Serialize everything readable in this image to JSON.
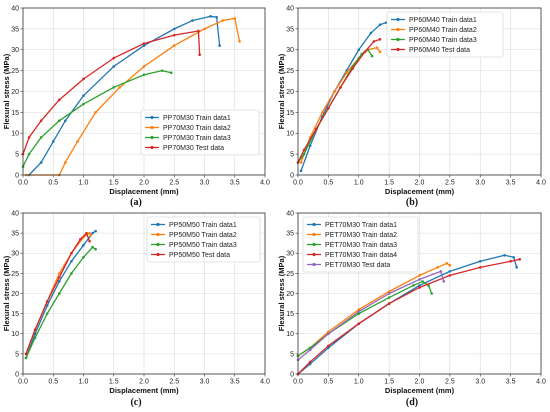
{
  "chart_data": [
    {
      "type": "line",
      "panel_label": "(a)",
      "xlabel": "Displacement (mm)",
      "ylabel": "Flexural stress (MPa)",
      "xlim": [
        0.0,
        4.0
      ],
      "ylim": [
        0,
        40
      ],
      "xticks": [
        "0.0",
        "0.5",
        "1.0",
        "1.5",
        "2.0",
        "2.5",
        "3.0",
        "3.5",
        "4.0"
      ],
      "yticks": [
        "0",
        "5",
        "10",
        "15",
        "20",
        "25",
        "30",
        "35",
        "40"
      ],
      "grid": true,
      "legend_position": "lower-right",
      "series": [
        {
          "name": "PP70M30 Train data1",
          "color": "#1f77b4",
          "points": [
            [
              0.1,
              0
            ],
            [
              0.3,
              3
            ],
            [
              0.5,
              8
            ],
            [
              0.7,
              13
            ],
            [
              1.0,
              19
            ],
            [
              1.5,
              26
            ],
            [
              2.0,
              31
            ],
            [
              2.5,
              35
            ],
            [
              2.8,
              37
            ],
            [
              3.1,
              38
            ],
            [
              3.2,
              37.8
            ],
            [
              3.25,
              31
            ]
          ]
        },
        {
          "name": "PP70M30 Train data2",
          "color": "#ff7f0e",
          "points": [
            [
              0.05,
              0
            ],
            [
              0.6,
              0
            ],
            [
              0.7,
              3
            ],
            [
              0.9,
              8
            ],
            [
              1.2,
              15
            ],
            [
              1.6,
              21
            ],
            [
              2.0,
              26
            ],
            [
              2.5,
              31
            ],
            [
              3.0,
              35
            ],
            [
              3.3,
              37
            ],
            [
              3.5,
              37.5
            ],
            [
              3.58,
              32
            ]
          ]
        },
        {
          "name": "PP70M30 Train data3",
          "color": "#2ca02c",
          "points": [
            [
              0.0,
              2
            ],
            [
              0.1,
              5
            ],
            [
              0.3,
              9
            ],
            [
              0.6,
              13
            ],
            [
              1.0,
              17
            ],
            [
              1.5,
              21
            ],
            [
              2.0,
              24
            ],
            [
              2.3,
              25
            ],
            [
              2.45,
              24.5
            ]
          ]
        },
        {
          "name": "PP70M30 Test data",
          "color": "#d62728",
          "points": [
            [
              0.0,
              5
            ],
            [
              0.1,
              9
            ],
            [
              0.3,
              13
            ],
            [
              0.6,
              18
            ],
            [
              1.0,
              23
            ],
            [
              1.5,
              28
            ],
            [
              2.0,
              31.5
            ],
            [
              2.5,
              33.5
            ],
            [
              2.9,
              34.5
            ],
            [
              2.92,
              28.8
            ]
          ]
        }
      ]
    },
    {
      "type": "line",
      "panel_label": "(b)",
      "xlabel": "Displacement (mm)",
      "ylabel": "Flexural stress (MPa)",
      "xlim": [
        0.0,
        4.0
      ],
      "ylim": [
        0,
        40
      ],
      "xticks": [
        "0.0",
        "0.5",
        "1.0",
        "1.5",
        "2.0",
        "2.5",
        "3.0",
        "3.5",
        "4.0"
      ],
      "yticks": [
        "0",
        "5",
        "10",
        "15",
        "20",
        "25",
        "30",
        "35",
        "40"
      ],
      "grid": true,
      "legend_position": "top-right",
      "series": [
        {
          "name": "PP60M40 Train data1",
          "color": "#1f77b4",
          "points": [
            [
              0.05,
              1
            ],
            [
              0.2,
              7
            ],
            [
              0.4,
              14
            ],
            [
              0.6,
              20
            ],
            [
              0.8,
              25
            ],
            [
              1.0,
              30
            ],
            [
              1.2,
              34
            ],
            [
              1.35,
              36
            ],
            [
              1.45,
              36.5
            ]
          ]
        },
        {
          "name": "PP60M40 Train data2",
          "color": "#ff7f0e",
          "points": [
            [
              0.05,
              3
            ],
            [
              0.2,
              9
            ],
            [
              0.4,
              15
            ],
            [
              0.6,
              20
            ],
            [
              0.8,
              24.5
            ],
            [
              1.0,
              28
            ],
            [
              1.15,
              30
            ],
            [
              1.3,
              30.5
            ],
            [
              1.35,
              29.5
            ]
          ]
        },
        {
          "name": "PP60M40 Train data3",
          "color": "#2ca02c",
          "points": [
            [
              0.0,
              3
            ],
            [
              0.1,
              5
            ],
            [
              0.3,
              11
            ],
            [
              0.5,
              16
            ],
            [
              0.7,
              21
            ],
            [
              0.9,
              26
            ],
            [
              1.05,
              29
            ],
            [
              1.15,
              30
            ],
            [
              1.22,
              28.5
            ]
          ]
        },
        {
          "name": "PP60M40 Test data",
          "color": "#d62728",
          "points": [
            [
              0.0,
              3
            ],
            [
              0.1,
              6
            ],
            [
              0.3,
              11
            ],
            [
              0.5,
              16
            ],
            [
              0.7,
              21
            ],
            [
              0.9,
              25.5
            ],
            [
              1.1,
              29.5
            ],
            [
              1.25,
              32
            ],
            [
              1.35,
              32.5
            ]
          ]
        }
      ]
    },
    {
      "type": "line",
      "panel_label": "(c)",
      "xlabel": "Displacement (mm)",
      "ylabel": "Flexural stress (MPa)",
      "xlim": [
        0.0,
        4.0
      ],
      "ylim": [
        0,
        40
      ],
      "xticks": [
        "0.0",
        "0.5",
        "1.0",
        "1.5",
        "2.0",
        "2.5",
        "3.0",
        "3.5",
        "4.0"
      ],
      "yticks": [
        "0",
        "5",
        "10",
        "15",
        "20",
        "25",
        "30",
        "35",
        "40"
      ],
      "grid": true,
      "legend_position": "top-right",
      "series": [
        {
          "name": "PP50M50 Train data1",
          "color": "#1f77b4",
          "points": [
            [
              0.05,
              4
            ],
            [
              0.2,
              10
            ],
            [
              0.4,
              17
            ],
            [
              0.6,
              23
            ],
            [
              0.8,
              28
            ],
            [
              1.0,
              32
            ],
            [
              1.15,
              35
            ],
            [
              1.2,
              35.5
            ]
          ]
        },
        {
          "name": "PP50M50 Train data2",
          "color": "#ff7f0e",
          "points": [
            [
              0.05,
              5
            ],
            [
              0.2,
              11
            ],
            [
              0.4,
              18
            ],
            [
              0.6,
              25
            ],
            [
              0.8,
              30
            ],
            [
              1.0,
              34
            ],
            [
              1.1,
              35
            ],
            [
              1.12,
              34.5
            ]
          ]
        },
        {
          "name": "PP50M50 Train data3",
          "color": "#2ca02c",
          "points": [
            [
              0.05,
              4
            ],
            [
              0.2,
              9
            ],
            [
              0.4,
              15
            ],
            [
              0.6,
              20
            ],
            [
              0.8,
              25
            ],
            [
              1.0,
              29
            ],
            [
              1.15,
              31.5
            ],
            [
              1.2,
              31
            ]
          ]
        },
        {
          "name": "PP50M50 Test data",
          "color": "#d62728",
          "points": [
            [
              0.05,
              5
            ],
            [
              0.2,
              11
            ],
            [
              0.4,
              18
            ],
            [
              0.6,
              24
            ],
            [
              0.8,
              30
            ],
            [
              0.95,
              33.5
            ],
            [
              1.05,
              35
            ],
            [
              1.1,
              33
            ]
          ]
        }
      ]
    },
    {
      "type": "line",
      "panel_label": "(d)",
      "xlabel": "Displacement (mm)",
      "ylabel": "Flexural stress (MPa)",
      "xlim": [
        0.0,
        4.0
      ],
      "ylim": [
        0,
        40
      ],
      "xticks": [
        "0.0",
        "0.5",
        "1.0",
        "1.5",
        "2.0",
        "2.5",
        "3.0",
        "3.5",
        "4.0"
      ],
      "yticks": [
        "0",
        "5",
        "10",
        "15",
        "20",
        "25",
        "30",
        "35",
        "40"
      ],
      "grid": true,
      "legend_position": "top-left",
      "series": [
        {
          "name": "PET70M30 Train data1",
          "color": "#1f77b4",
          "points": [
            [
              0.0,
              0
            ],
            [
              0.2,
              2.5
            ],
            [
              0.5,
              6.5
            ],
            [
              1.0,
              12.5
            ],
            [
              1.5,
              17.5
            ],
            [
              2.0,
              22
            ],
            [
              2.5,
              25.5
            ],
            [
              3.0,
              28
            ],
            [
              3.4,
              29.5
            ],
            [
              3.55,
              29
            ],
            [
              3.6,
              26.5
            ]
          ]
        },
        {
          "name": "PET70M30 Train data2",
          "color": "#ff7f0e",
          "points": [
            [
              0.0,
              4.5
            ],
            [
              0.2,
              6.5
            ],
            [
              0.5,
              10.5
            ],
            [
              1.0,
              16
            ],
            [
              1.5,
              20.5
            ],
            [
              2.0,
              24.5
            ],
            [
              2.3,
              26.5
            ],
            [
              2.45,
              27.5
            ],
            [
              2.5,
              27
            ]
          ]
        },
        {
          "name": "PET70M30 Train data3",
          "color": "#2ca02c",
          "points": [
            [
              0.0,
              4.5
            ],
            [
              0.2,
              6.5
            ],
            [
              0.5,
              10
            ],
            [
              1.0,
              15
            ],
            [
              1.5,
              19
            ],
            [
              1.9,
              22
            ],
            [
              2.05,
              23
            ],
            [
              2.15,
              22
            ],
            [
              2.2,
              20
            ]
          ]
        },
        {
          "name": "PET70M30 Train data4",
          "color": "#d62728",
          "points": [
            [
              0.0,
              0
            ],
            [
              0.2,
              3
            ],
            [
              0.5,
              7
            ],
            [
              1.0,
              12.5
            ],
            [
              1.5,
              17.5
            ],
            [
              2.0,
              21.5
            ],
            [
              2.5,
              24.5
            ],
            [
              3.0,
              26.5
            ],
            [
              3.5,
              28
            ],
            [
              3.65,
              28.5
            ]
          ]
        },
        {
          "name": "PET70M30 Test data",
          "color": "#9467bd",
          "points": [
            [
              0.0,
              3.5
            ],
            [
              0.2,
              6
            ],
            [
              0.5,
              10
            ],
            [
              1.0,
              15.5
            ],
            [
              1.5,
              20
            ],
            [
              2.0,
              23.5
            ],
            [
              2.35,
              25.5
            ],
            [
              2.4,
              23
            ]
          ]
        }
      ]
    }
  ]
}
